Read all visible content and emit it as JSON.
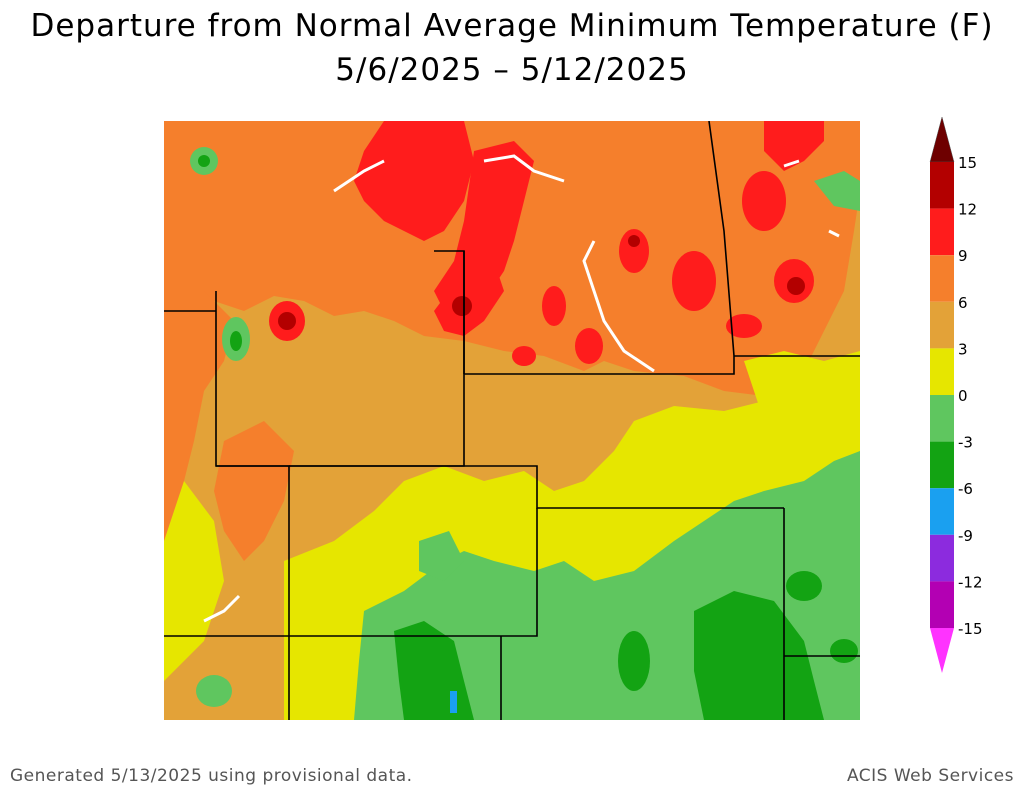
{
  "title_line1": "Departure from Normal Average Minimum Temperature (F)",
  "title_line2": "5/6/2025 – 5/12/2025",
  "footer_left": "Generated 5/13/2025 using provisional data.",
  "footer_right": "ACIS Web Services",
  "legend": {
    "labels": [
      "15",
      "12",
      "9",
      "6",
      "3",
      "0",
      "-3",
      "-6",
      "-9",
      "-12",
      "-15"
    ],
    "bins": [
      {
        "range": "above 15",
        "color": "#6e0000"
      },
      {
        "range": "12 to 15",
        "color": "#b30000"
      },
      {
        "range": "9 to 12",
        "color": "#ff1c1c"
      },
      {
        "range": "6 to 9",
        "color": "#f57f2c"
      },
      {
        "range": "3 to 6",
        "color": "#e3a238"
      },
      {
        "range": "0 to 3",
        "color": "#e6e600"
      },
      {
        "range": "-3 to 0",
        "color": "#5fc65f"
      },
      {
        "range": "-6 to -3",
        "color": "#13a313"
      },
      {
        "range": "-9 to -6",
        "color": "#1aa0f0"
      },
      {
        "range": "-12 to -9",
        "color": "#8c2bde"
      },
      {
        "range": "-15 to -12",
        "color": "#b300b3"
      },
      {
        "range": "below -15",
        "color": "#ff33ff"
      }
    ]
  },
  "colors": {
    "gt15": "#6e0000",
    "c12": "#b30000",
    "c9": "#ff1c1c",
    "c6": "#f57f2c",
    "c3": "#e3a238",
    "c0": "#e6e600",
    "cm3": "#5fc65f",
    "cm6": "#13a313",
    "cm9": "#1aa0f0"
  }
}
